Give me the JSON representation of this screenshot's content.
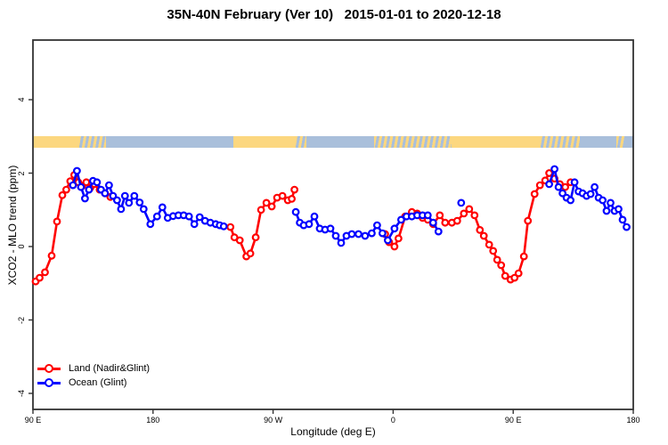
{
  "title": "35N-40N February (Ver 10)   2015-01-01 to 2020-12-18",
  "axes": {
    "x": {
      "label": "Longitude (deg E)",
      "range": [
        90,
        540
      ],
      "ticks": [
        {
          "value": 90,
          "label": "90 E"
        },
        {
          "value": 180,
          "label": "180"
        },
        {
          "value": 270,
          "label": "90 W"
        },
        {
          "value": 360,
          "label": "0"
        },
        {
          "value": 450,
          "label": "90 E"
        },
        {
          "value": 540,
          "label": "180"
        }
      ]
    },
    "y": {
      "label": "XCO2 - MLO trend (ppm)",
      "range": [
        -4.6,
        5.6
      ],
      "ticks": [
        {
          "value": -4,
          "label": "-4"
        },
        {
          "value": -2,
          "label": "-2"
        },
        {
          "value": 0,
          "label": "0"
        },
        {
          "value": 2,
          "label": "2"
        },
        {
          "value": 4,
          "label": "4"
        }
      ]
    }
  },
  "colors": {
    "land_series": "#ff0000",
    "ocean_series": "#0000ff",
    "strip_land": "#fcd77f",
    "strip_ocean": "#a9bfdb",
    "axis": "#333333"
  },
  "legend": {
    "items": [
      {
        "label": "Land (Nadir&Glint)",
        "color": "#ff0000"
      },
      {
        "label": "Ocean (Glint)",
        "color": "#0000ff"
      }
    ]
  },
  "chart_data": {
    "type": "line",
    "title": "35N-40N February (Ver 10)   2015-01-01 to 2020-12-18",
    "xlabel": "Longitude (deg E)",
    "ylabel": "XCO2 - MLO trend (ppm)",
    "xlim": [
      90,
      540
    ],
    "ylim": [
      -4.6,
      5.6
    ],
    "grid": false,
    "legend_position": "bottom-left",
    "map_strip": {
      "value_range": [
        2.7,
        3.0
      ],
      "segments": [
        {
          "from": 90,
          "to": 124,
          "type": "land"
        },
        {
          "from": 124,
          "to": 145,
          "type": "mixed"
        },
        {
          "from": 145,
          "to": 240,
          "type": "ocean"
        },
        {
          "from": 240,
          "to": 286,
          "type": "land"
        },
        {
          "from": 286,
          "to": 295,
          "type": "mixed"
        },
        {
          "from": 295,
          "to": 346,
          "type": "ocean"
        },
        {
          "from": 346,
          "to": 404,
          "type": "mixed"
        },
        {
          "from": 404,
          "to": 470,
          "type": "land"
        },
        {
          "from": 470,
          "to": 500,
          "type": "mixed"
        },
        {
          "from": 500,
          "to": 527,
          "type": "ocean"
        },
        {
          "from": 527,
          "to": 533,
          "type": "mixed"
        },
        {
          "from": 533,
          "to": 540,
          "type": "ocean"
        }
      ]
    },
    "series": [
      {
        "name": "Land (Nadir&Glint)",
        "color": "#ff0000",
        "segments": [
          [
            [
              92,
              -0.95
            ],
            [
              95,
              -0.85
            ],
            [
              99,
              -0.7
            ],
            [
              104,
              -0.25
            ],
            [
              108,
              0.68
            ],
            [
              112,
              1.4
            ],
            [
              115,
              1.55
            ],
            [
              118,
              1.78
            ],
            [
              121,
              1.95
            ],
            [
              124,
              1.75
            ],
            [
              127,
              1.65
            ],
            [
              130,
              1.75
            ],
            [
              133,
              1.6
            ],
            [
              136,
              1.7
            ],
            [
              140,
              1.55
            ],
            [
              144,
              1.45
            ],
            [
              148,
              1.35
            ]
          ],
          [
            [
              238,
              0.53
            ],
            [
              241,
              0.25
            ],
            [
              245,
              0.17
            ],
            [
              250,
              -0.27
            ],
            [
              253,
              -0.19
            ],
            [
              257,
              0.25
            ],
            [
              261,
              1.0
            ],
            [
              265,
              1.19
            ],
            [
              269,
              1.09
            ],
            [
              273,
              1.33
            ],
            [
              277,
              1.38
            ],
            [
              281,
              1.26
            ],
            [
              284,
              1.3
            ],
            [
              286,
              1.55
            ]
          ],
          [
            [
              354,
              0.34
            ],
            [
              357,
              0.12
            ],
            [
              361,
              0.0
            ],
            [
              364,
              0.22
            ],
            [
              369,
              0.82
            ],
            [
              374,
              0.94
            ],
            [
              378,
              0.9
            ],
            [
              382,
              0.78
            ],
            [
              386,
              0.73
            ],
            [
              390,
              0.61
            ],
            [
              395,
              0.85
            ],
            [
              399,
              0.65
            ],
            [
              404,
              0.65
            ],
            [
              408,
              0.7
            ],
            [
              413,
              0.9
            ],
            [
              417,
              1.02
            ],
            [
              421,
              0.85
            ],
            [
              425,
              0.45
            ],
            [
              428,
              0.29
            ],
            [
              432,
              0.05
            ],
            [
              435,
              -0.12
            ],
            [
              438,
              -0.36
            ],
            [
              441,
              -0.51
            ],
            [
              444,
              -0.8
            ],
            [
              448,
              -0.9
            ],
            [
              451,
              -0.85
            ],
            [
              454,
              -0.73
            ],
            [
              458,
              -0.27
            ],
            [
              461,
              0.7
            ],
            [
              466,
              1.43
            ],
            [
              470,
              1.67
            ],
            [
              474,
              1.8
            ],
            [
              477,
              2.0
            ],
            [
              481,
              1.85
            ],
            [
              485,
              1.7
            ],
            [
              489,
              1.62
            ],
            [
              493,
              1.75
            ]
          ]
        ]
      },
      {
        "name": "Ocean (Glint)",
        "color": "#0000ff",
        "segments": [
          [
            [
              120,
              1.67
            ],
            [
              123,
              2.06
            ],
            [
              126,
              1.62
            ],
            [
              129,
              1.31
            ],
            [
              132,
              1.55
            ],
            [
              135,
              1.79
            ],
            [
              138,
              1.75
            ],
            [
              141,
              1.55
            ],
            [
              144,
              1.45
            ],
            [
              147,
              1.67
            ],
            [
              150,
              1.38
            ],
            [
              153,
              1.26
            ],
            [
              156,
              1.02
            ],
            [
              159,
              1.38
            ],
            [
              162,
              1.19
            ],
            [
              166,
              1.38
            ],
            [
              170,
              1.2
            ],
            [
              173,
              1.02
            ],
            [
              178,
              0.61
            ],
            [
              183,
              0.82
            ],
            [
              187,
              1.07
            ],
            [
              191,
              0.78
            ],
            [
              195,
              0.83
            ],
            [
              199,
              0.85
            ],
            [
              203,
              0.85
            ],
            [
              207,
              0.82
            ],
            [
              211,
              0.61
            ],
            [
              215,
              0.8
            ],
            [
              219,
              0.7
            ],
            [
              223,
              0.65
            ],
            [
              227,
              0.61
            ],
            [
              230,
              0.58
            ],
            [
              233,
              0.55
            ]
          ],
          [
            [
              287,
              0.94
            ],
            [
              290,
              0.65
            ],
            [
              293,
              0.58
            ],
            [
              297,
              0.61
            ],
            [
              301,
              0.82
            ],
            [
              305,
              0.49
            ],
            [
              309,
              0.46
            ],
            [
              313,
              0.49
            ],
            [
              317,
              0.29
            ],
            [
              321,
              0.1
            ],
            [
              325,
              0.29
            ],
            [
              329,
              0.34
            ],
            [
              334,
              0.34
            ],
            [
              339,
              0.29
            ],
            [
              344,
              0.36
            ],
            [
              348,
              0.58
            ],
            [
              352,
              0.36
            ],
            [
              356,
              0.17
            ],
            [
              361,
              0.49
            ],
            [
              366,
              0.73
            ],
            [
              370,
              0.82
            ],
            [
              374,
              0.82
            ],
            [
              378,
              0.85
            ],
            [
              382,
              0.85
            ],
            [
              386,
              0.85
            ],
            [
              390,
              0.65
            ],
            [
              394,
              0.41
            ]
          ],
          [
            [
              411,
              1.19
            ]
          ],
          [
            [
              477,
              1.7
            ],
            [
              481,
              2.11
            ],
            [
              484,
              1.62
            ],
            [
              487,
              1.45
            ],
            [
              490,
              1.33
            ],
            [
              493,
              1.26
            ],
            [
              496,
              1.75
            ],
            [
              499,
              1.5
            ],
            [
              502,
              1.45
            ],
            [
              505,
              1.38
            ],
            [
              508,
              1.43
            ],
            [
              511,
              1.62
            ],
            [
              514,
              1.33
            ],
            [
              517,
              1.26
            ],
            [
              520,
              0.97
            ],
            [
              523,
              1.19
            ],
            [
              526,
              0.97
            ],
            [
              529,
              1.02
            ],
            [
              532,
              0.73
            ],
            [
              535,
              0.53
            ]
          ]
        ]
      }
    ]
  }
}
